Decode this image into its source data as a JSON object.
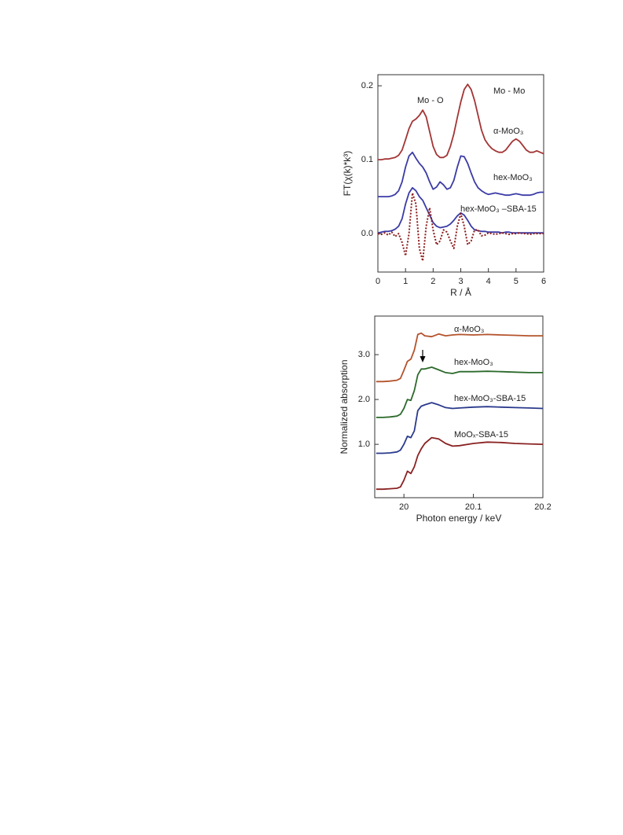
{
  "chart_data": [
    {
      "type": "line",
      "xlabel": "R / Å",
      "ylabel": "FT(χ(k)*k³)",
      "xlim": [
        0,
        6
      ],
      "ylim": [
        -0.052,
        0.215
      ],
      "xticks": [
        0,
        1,
        2,
        3,
        4,
        5,
        6
      ],
      "yticks": [
        {
          "value": 0,
          "label": "0.0"
        },
        0.1,
        0.2
      ],
      "annotations": [
        "Mo - O",
        "Mo - Mo"
      ],
      "x": [
        0,
        0.125,
        0.25,
        0.375,
        0.5,
        0.625,
        0.75,
        0.875,
        1,
        1.125,
        1.25,
        1.375,
        1.5,
        1.625,
        1.75,
        1.875,
        2,
        2.125,
        2.25,
        2.375,
        2.5,
        2.625,
        2.75,
        2.875,
        3,
        3.125,
        3.25,
        3.375,
        3.5,
        3.625,
        3.75,
        3.875,
        4,
        4.125,
        4.25,
        4.375,
        4.5,
        4.625,
        4.75,
        4.875,
        5,
        5.125,
        5.25,
        5.375,
        5.5,
        5.625,
        5.75,
        5.875,
        6
      ],
      "series": [
        {
          "name": "α-MoO₃",
          "color": "#a33434",
          "values": [
            0.1,
            0.1,
            0.101,
            0.101,
            0.102,
            0.103,
            0.106,
            0.113,
            0.127,
            0.142,
            0.152,
            0.155,
            0.16,
            0.167,
            0.158,
            0.138,
            0.118,
            0.107,
            0.103,
            0.103,
            0.106,
            0.118,
            0.135,
            0.157,
            0.178,
            0.195,
            0.202,
            0.195,
            0.18,
            0.16,
            0.14,
            0.127,
            0.12,
            0.115,
            0.112,
            0.11,
            0.11,
            0.113,
            0.119,
            0.125,
            0.128,
            0.125,
            0.119,
            0.113,
            0.11,
            0.11,
            0.112,
            0.11,
            0.108
          ]
        },
        {
          "name": "hex-MoO₃",
          "color": "#3b3ba6",
          "values": [
            0.05,
            0.05,
            0.05,
            0.05,
            0.051,
            0.053,
            0.058,
            0.07,
            0.09,
            0.105,
            0.11,
            0.102,
            0.095,
            0.09,
            0.082,
            0.07,
            0.06,
            0.063,
            0.07,
            0.066,
            0.06,
            0.062,
            0.072,
            0.09,
            0.105,
            0.104,
            0.095,
            0.082,
            0.07,
            0.062,
            0.058,
            0.055,
            0.053,
            0.054,
            0.055,
            0.054,
            0.053,
            0.052,
            0.052,
            0.053,
            0.054,
            0.053,
            0.052,
            0.052,
            0.052,
            0.053,
            0.055,
            0.056,
            0.056
          ]
        },
        {
          "name": "hex-MoO₃ –SBA-15",
          "color": "#3b3ba6",
          "values": [
            0.001,
            0.002,
            0.003,
            0.003,
            0.004,
            0.006,
            0.01,
            0.02,
            0.04,
            0.055,
            0.062,
            0.058,
            0.05,
            0.045,
            0.035,
            0.025,
            0.015,
            0.01,
            0.008,
            0.009,
            0.01,
            0.013,
            0.018,
            0.024,
            0.028,
            0.025,
            0.018,
            0.01,
            0.005,
            0.004,
            0.003,
            0.003,
            0.002,
            0.002,
            0.002,
            0.002,
            0.001,
            0.002,
            0.002,
            0.001,
            0.001,
            0.001,
            0.001,
            0.001,
            0.001,
            0.001,
            0.001,
            0.001,
            0.001
          ]
        },
        {
          "color": "#8b1a1a",
          "linestyle": "dotted",
          "values": [
            0,
            -0.001,
            0.001,
            -0.002,
            0.002,
            -0.004,
            0,
            -0.012,
            -0.03,
            0,
            0.055,
            0.04,
            -0.02,
            -0.037,
            0.01,
            0.035,
            0.005,
            -0.015,
            -0.01,
            0.005,
            0.002,
            -0.01,
            -0.02,
            0.01,
            0.027,
            0.01,
            -0.015,
            -0.01,
            0.005,
            0.005,
            -0.003,
            -0.002,
            0.001,
            0,
            -0.001,
            0,
            0.001,
            0,
            -0.001,
            0,
            0,
            0.001,
            0,
            0,
            -0.001,
            0,
            0,
            0,
            0
          ]
        }
      ]
    },
    {
      "type": "line",
      "xlabel": "Photon energy / keV",
      "ylabel": "Normalized absorption",
      "xlim": [
        19.958,
        20.2
      ],
      "ylim": [
        -0.19,
        3.86
      ],
      "xticks": [
        20,
        20.1,
        20.2
      ],
      "yticks": [
        {
          "value": 1,
          "label": "1.0"
        },
        {
          "value": 2,
          "label": "2.0"
        },
        {
          "value": 3,
          "label": "3.0"
        }
      ],
      "x": [
        19.96,
        19.97,
        19.98,
        19.99,
        19.995,
        20.0,
        20.005,
        20.01,
        20.015,
        20.02,
        20.025,
        20.03,
        20.04,
        20.05,
        20.06,
        20.07,
        20.08,
        20.1,
        20.12,
        20.14,
        20.16,
        20.18,
        20.2
      ],
      "series": [
        {
          "name": "α-MoO₃",
          "color": "#b4532c",
          "values": [
            2.4,
            2.4,
            2.41,
            2.43,
            2.47,
            2.65,
            2.85,
            2.9,
            3.1,
            3.45,
            3.48,
            3.42,
            3.4,
            3.46,
            3.42,
            3.44,
            3.45,
            3.44,
            3.45,
            3.44,
            3.43,
            3.42,
            3.42
          ]
        },
        {
          "name": "hex-MoO₃",
          "color": "#2c6a2c",
          "values": [
            1.6,
            1.6,
            1.61,
            1.63,
            1.67,
            1.8,
            2.0,
            1.98,
            2.2,
            2.55,
            2.68,
            2.68,
            2.72,
            2.66,
            2.6,
            2.58,
            2.62,
            2.62,
            2.63,
            2.62,
            2.61,
            2.6,
            2.6
          ]
        },
        {
          "name": "hex-MoO₃-SBA-15",
          "color": "#2b3a8c",
          "values": [
            0.8,
            0.8,
            0.81,
            0.83,
            0.87,
            1.0,
            1.18,
            1.15,
            1.3,
            1.75,
            1.85,
            1.88,
            1.93,
            1.88,
            1.82,
            1.8,
            1.81,
            1.83,
            1.84,
            1.83,
            1.82,
            1.81,
            1.8
          ]
        },
        {
          "name": "MoOₓ-SBA-15",
          "color": "#8a2222",
          "values": [
            0,
            0,
            0.01,
            0.02,
            0.05,
            0.2,
            0.4,
            0.35,
            0.5,
            0.75,
            0.9,
            1.02,
            1.15,
            1.12,
            1.02,
            0.96,
            0.97,
            1.02,
            1.05,
            1.04,
            1.02,
            1.01,
            1.0
          ]
        }
      ]
    }
  ]
}
